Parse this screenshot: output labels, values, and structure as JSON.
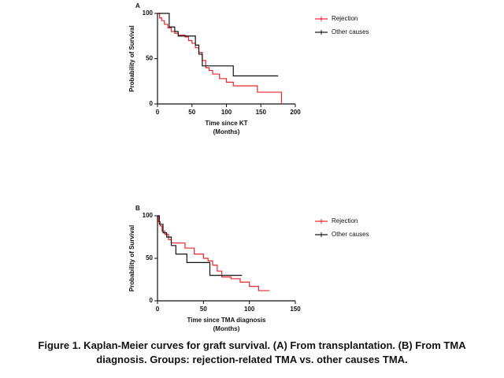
{
  "chart_data": [
    {
      "type": "step",
      "panel": "A",
      "xlabel": "Time since KT",
      "xsublabel": "(Months)",
      "ylabel": "Probability of Survival",
      "xlim": [
        0,
        200
      ],
      "xticks": [
        0,
        50,
        100,
        150,
        200
      ],
      "ylim": [
        0,
        100
      ],
      "yticks": [
        0,
        50,
        100
      ],
      "legend": "right",
      "series": [
        {
          "name": "Rejection",
          "color": "#e8262b",
          "x": [
            0,
            3,
            6,
            10,
            15,
            20,
            25,
            30,
            40,
            45,
            50,
            55,
            60,
            65,
            70,
            75,
            80,
            90,
            100,
            110,
            130,
            145,
            180
          ],
          "values": [
            100,
            95,
            92,
            88,
            84,
            80,
            78,
            76,
            74,
            70,
            67,
            62,
            57,
            48,
            40,
            37,
            33,
            28,
            24,
            20,
            20,
            13,
            0
          ]
        },
        {
          "name": "Other causes",
          "color": "#111111",
          "x": [
            0,
            17,
            25,
            30,
            50,
            55,
            60,
            65,
            110,
            175
          ],
          "values": [
            100,
            85,
            80,
            75,
            75,
            65,
            55,
            42,
            31,
            31
          ]
        }
      ]
    },
    {
      "type": "step",
      "panel": "B",
      "xlabel": "Time since TMA diagnosis",
      "xsublabel": "(Months)",
      "ylabel": "Probability of Survival",
      "xlim": [
        0,
        150
      ],
      "xticks": [
        0,
        50,
        100,
        150
      ],
      "ylim": [
        0,
        100
      ],
      "yticks": [
        0,
        50,
        100
      ],
      "legend": "right",
      "series": [
        {
          "name": "Rejection",
          "color": "#e8262b",
          "x": [
            0,
            1,
            3,
            5,
            8,
            12,
            15,
            25,
            30,
            40,
            50,
            55,
            60,
            65,
            70,
            80,
            90,
            100,
            110,
            122
          ],
          "values": [
            100,
            93,
            88,
            82,
            78,
            72,
            68,
            68,
            62,
            55,
            50,
            47,
            42,
            35,
            28,
            26,
            22,
            17,
            12,
            12
          ]
        },
        {
          "name": "Other causes",
          "color": "#111111",
          "x": [
            0,
            2,
            6,
            10,
            15,
            20,
            32,
            57,
            92
          ],
          "values": [
            100,
            90,
            80,
            75,
            65,
            55,
            45,
            30,
            30
          ]
        }
      ]
    }
  ],
  "caption": "Figure 1. Kaplan-Meier curves for graft survival. (A) From transplantation. (B) From TMA diagnosis. Groups: rejection-related TMA vs. other causes TMA."
}
